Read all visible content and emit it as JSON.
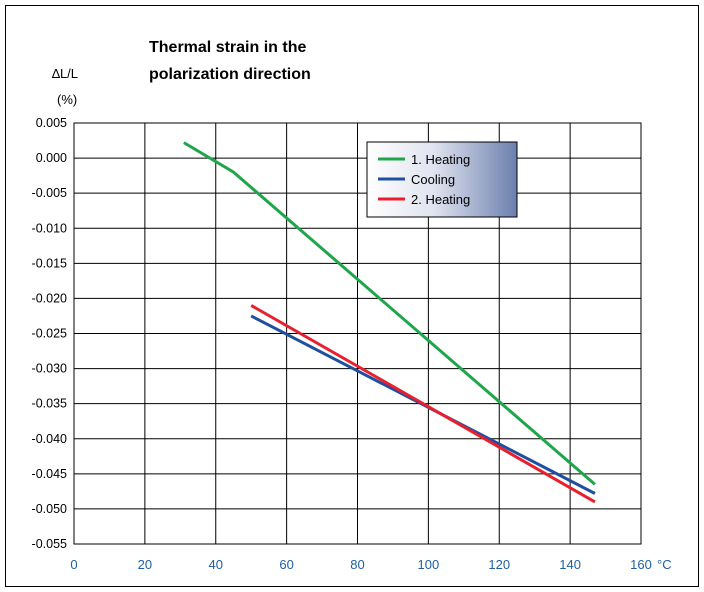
{
  "chart_data": {
    "type": "line",
    "title_lines": [
      "Thermal strain in the",
      "polarization direction"
    ],
    "ylabel_lines": [
      "∆L/L",
      "(%)"
    ],
    "xlabel": "°C",
    "xlim": [
      0,
      160
    ],
    "ylim": [
      -0.055,
      0.005
    ],
    "x_ticks": [
      0,
      20,
      40,
      60,
      80,
      100,
      120,
      140,
      160
    ],
    "x_tick_labels": [
      "0",
      "20",
      "40",
      "60",
      "80",
      "100",
      "120",
      "140",
      "160"
    ],
    "y_ticks": [
      0.005,
      0.0,
      -0.005,
      -0.01,
      -0.015,
      -0.02,
      -0.025,
      -0.03,
      -0.035,
      -0.04,
      -0.045,
      -0.05,
      -0.055
    ],
    "y_tick_labels": [
      "0.005",
      "0.000",
      "-0.005",
      "-0.010",
      "-0.015",
      "-0.020",
      "-0.025",
      "-0.030",
      "-0.035",
      "-0.040",
      "-0.045",
      "-0.050",
      "-0.055"
    ],
    "grid": true,
    "legend_position": "top-right",
    "series": [
      {
        "name": "1. Heating",
        "color": "#1fa54a",
        "x": [
          31,
          45,
          147
        ],
        "y": [
          0.0022,
          -0.002,
          -0.0465
        ]
      },
      {
        "name": "Cooling",
        "color": "#1f4f9f",
        "x": [
          50,
          147
        ],
        "y": [
          -0.0225,
          -0.0478
        ]
      },
      {
        "name": "2. Heating",
        "color": "#e8202e",
        "x": [
          50,
          147
        ],
        "y": [
          -0.021,
          -0.049
        ]
      }
    ]
  }
}
